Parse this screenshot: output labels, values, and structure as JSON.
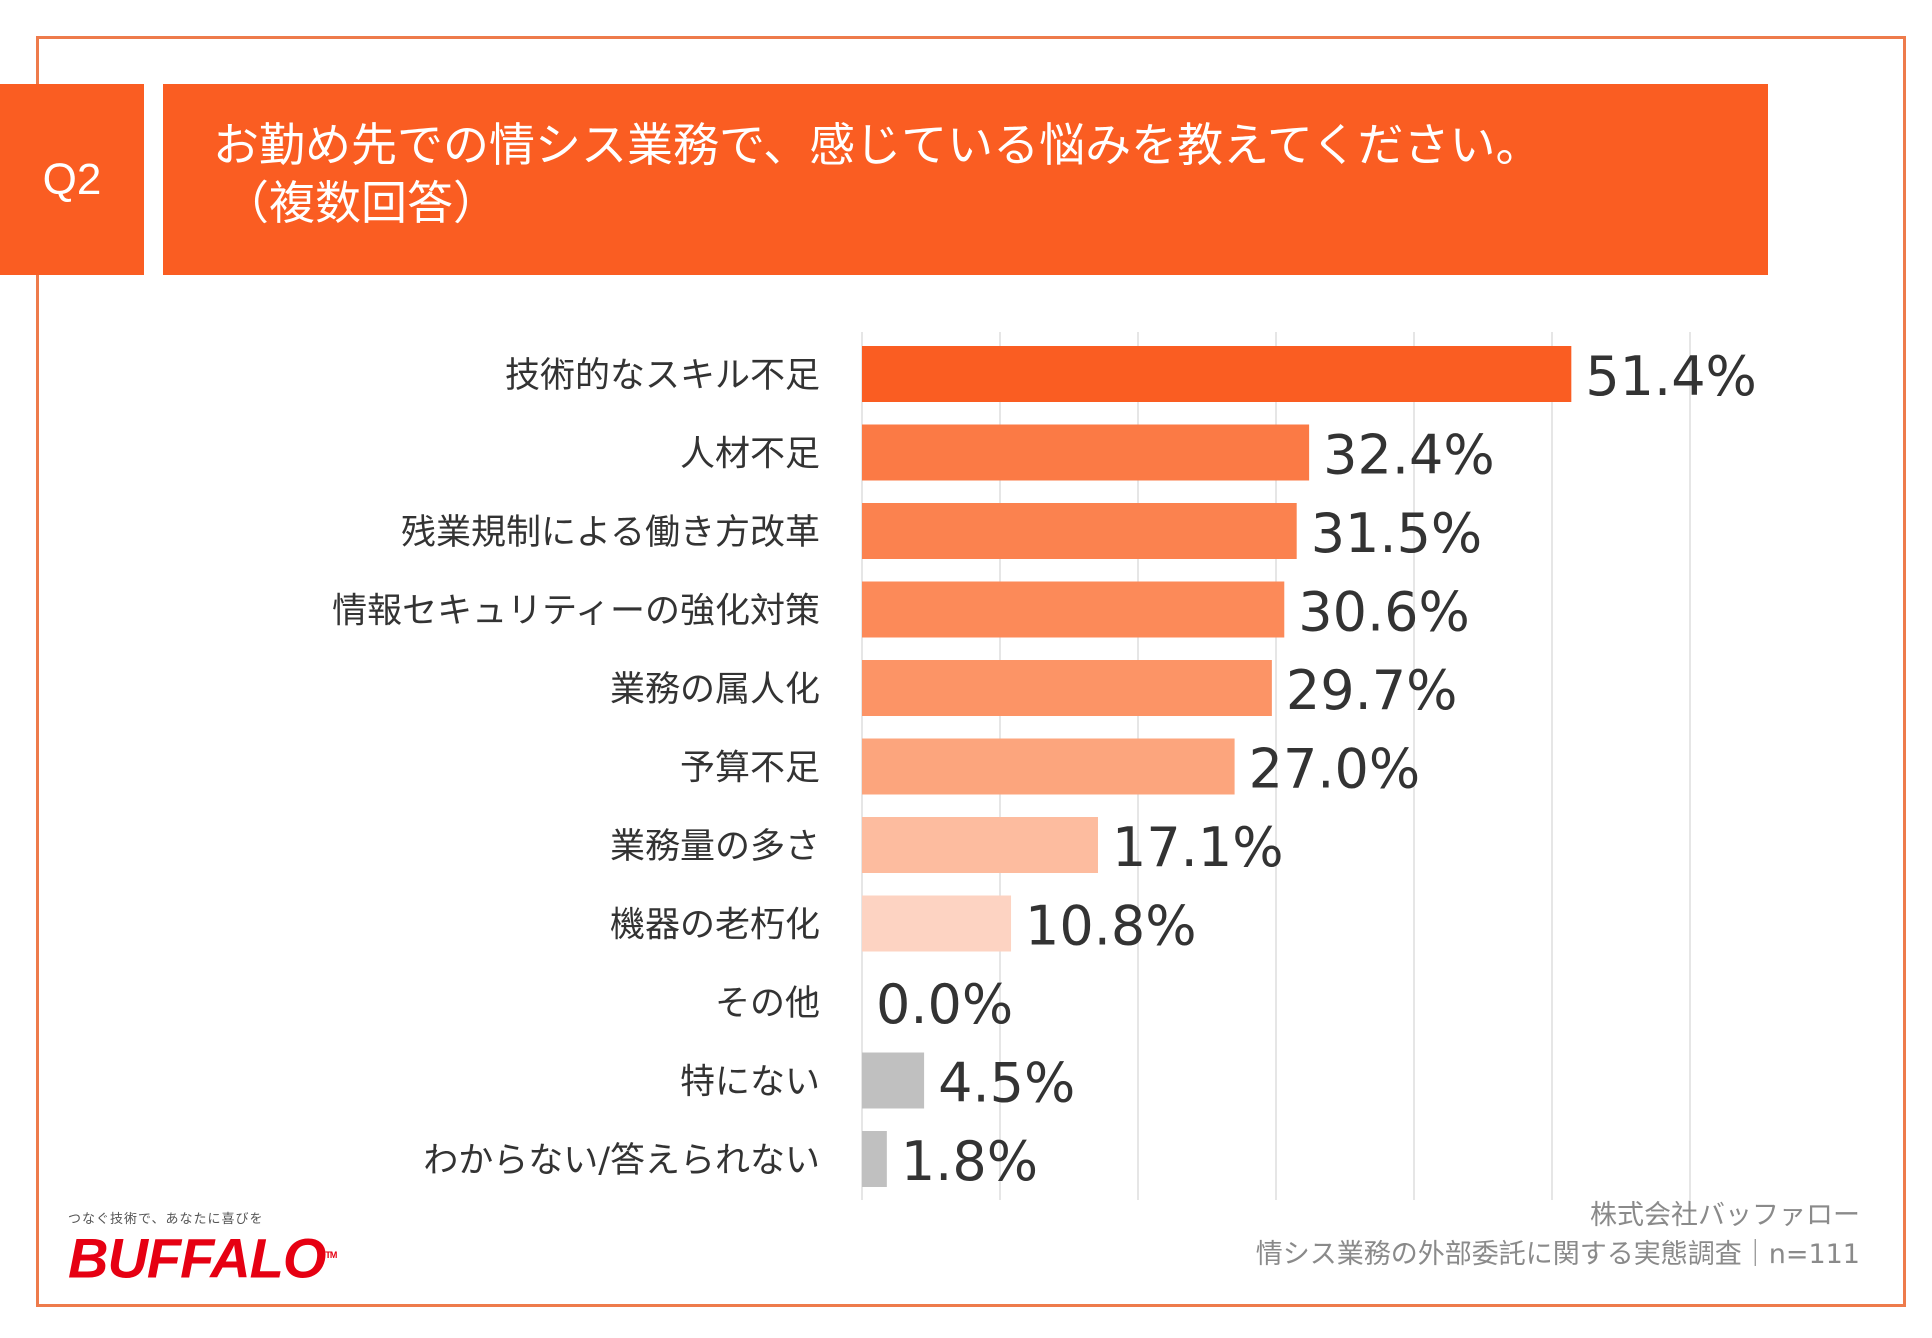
{
  "header": {
    "badge": "Q2",
    "title_line1": "お勤め先での情シス業務で、感じている悩みを教えてください。",
    "title_line2": "（複数回答）"
  },
  "chart_data": {
    "type": "bar",
    "orientation": "horizontal",
    "categories": [
      "技術的なスキル不足",
      "人材不足",
      "残業規制による働き方改革",
      "情報セキュリティーの強化対策",
      "業務の属人化",
      "予算不足",
      "業務量の多さ",
      "機器の老朽化",
      "その他",
      "特にない",
      "わからない/答えられない"
    ],
    "values": [
      51.4,
      32.4,
      31.5,
      30.6,
      29.7,
      27.0,
      17.1,
      10.8,
      0.0,
      4.5,
      1.8
    ],
    "value_labels": [
      "51.4%",
      "32.4%",
      "31.5%",
      "30.6%",
      "29.7%",
      "27.0%",
      "17.1%",
      "10.8%",
      "0.0%",
      "4.5%",
      "1.8%"
    ],
    "bar_colors": [
      "#fa5d22",
      "#fb7a45",
      "#fb824f",
      "#fc8a59",
      "#fc9466",
      "#fca57d",
      "#fdbc9f",
      "#fdd3c2",
      "#fde3d8",
      "#c0c0c0",
      "#c0c0c0"
    ],
    "xlim": [
      0,
      60
    ],
    "grid_step": 10,
    "grid": true
  },
  "footer": {
    "company": "株式会社バッファロー",
    "survey": "情シス業務の外部委託に関する実態調査｜n=111"
  },
  "logo": {
    "tagline": "つなぐ技術で、あなたに喜びを",
    "wordmark": "BUFFALO",
    "trademark": "TM"
  },
  "colors": {
    "accent": "#fa5d22",
    "frame": "#ee7b4b",
    "gray_bar": "#c0c0c0"
  }
}
